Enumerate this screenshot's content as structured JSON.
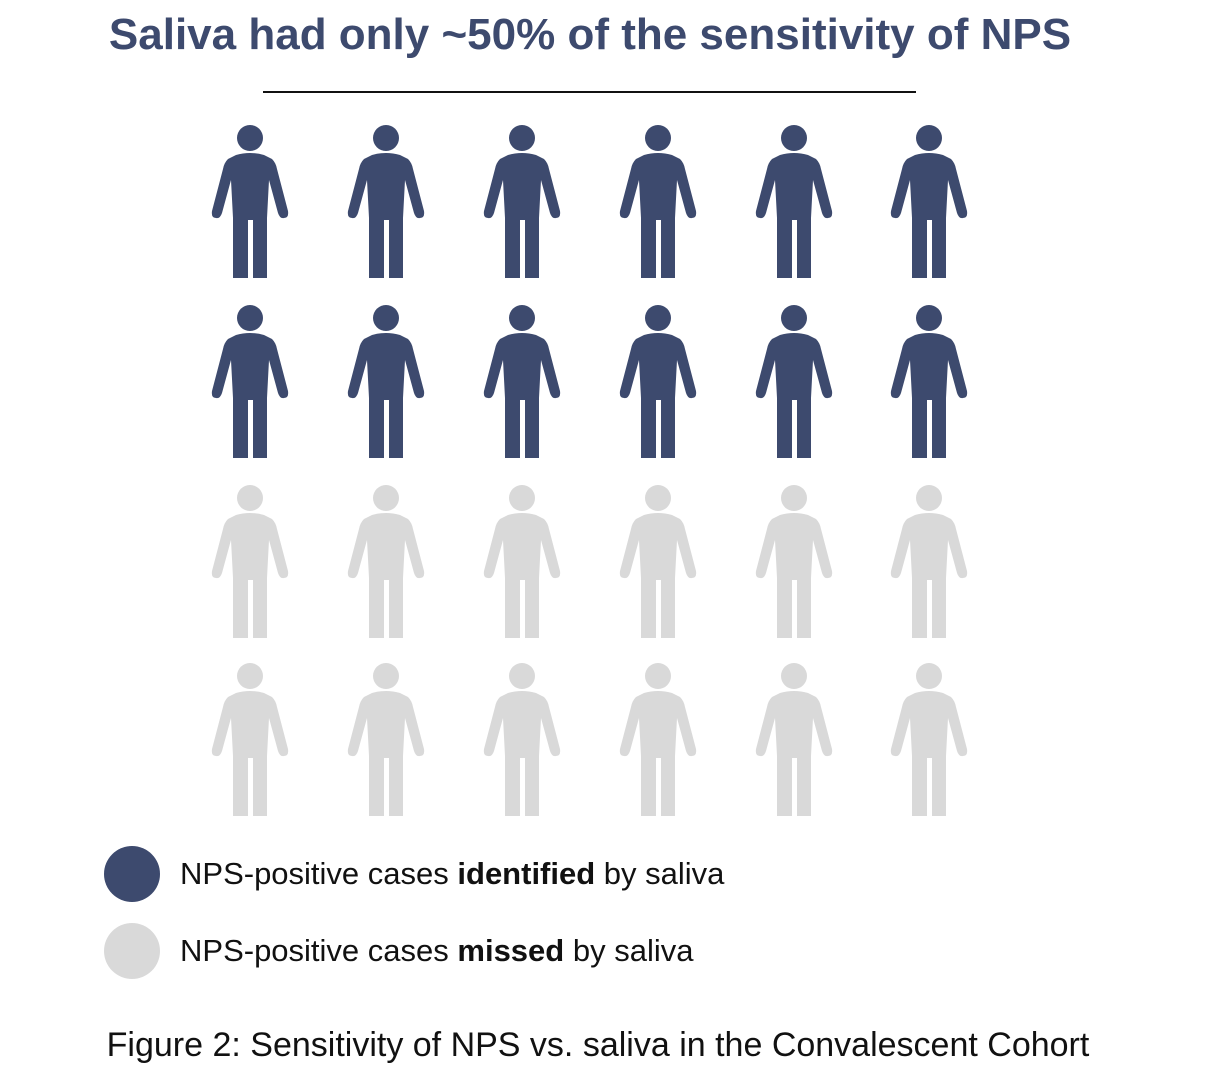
{
  "title": "Saliva had only ~50% of the sensitivity of NPS",
  "chart_data": {
    "type": "pictograph",
    "title": "Saliva had only ~50% of the sensitivity of NPS",
    "rows": 4,
    "columns": 6,
    "series": [
      {
        "name": "NPS-positive cases identified by saliva",
        "count": 12,
        "color": "#3d4a6e"
      },
      {
        "name": "NPS-positive cases missed by saliva",
        "count": 12,
        "color": "#d9d9d9"
      }
    ]
  },
  "legend": [
    {
      "prefix": "NPS-positive cases ",
      "bold": "identified",
      "suffix": " by saliva",
      "color": "#3d4a6e"
    },
    {
      "prefix": "NPS-positive cases ",
      "bold": "missed",
      "suffix": " by saliva",
      "color": "#d9d9d9"
    }
  ],
  "icon": "person-icon",
  "caption": "Figure 2: Sensitivity of NPS vs. saliva in the Convalescent Cohort"
}
